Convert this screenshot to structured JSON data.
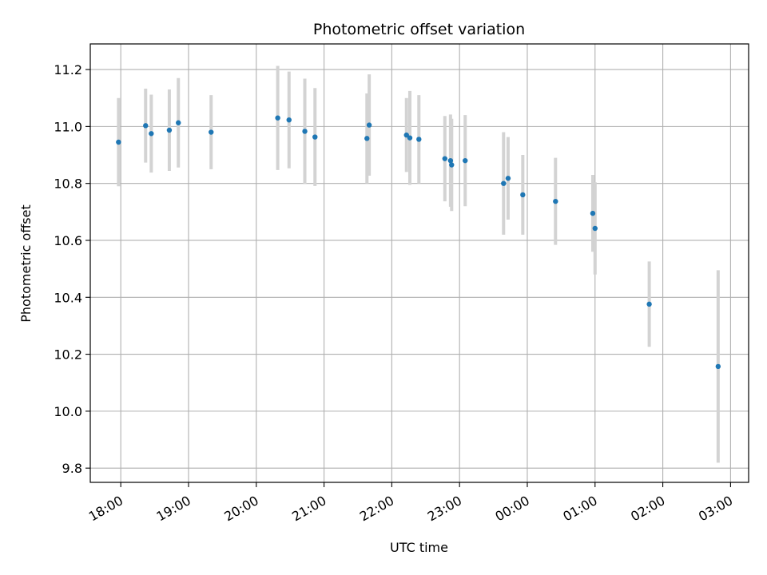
{
  "chart_data": {
    "type": "scatter",
    "title": "Photometric offset variation",
    "xlabel": "UTC time",
    "ylabel": "Photometric offset",
    "x_tick_labels": [
      "18:00",
      "19:00",
      "20:00",
      "21:00",
      "22:00",
      "23:00",
      "00:00",
      "01:00",
      "02:00",
      "03:00"
    ],
    "y_ticks": [
      9.8,
      10.0,
      10.2,
      10.4,
      10.6,
      10.8,
      11.0,
      11.2
    ],
    "y_tick_labels": [
      "9.8",
      "10.0",
      "10.2",
      "10.4",
      "10.6",
      "10.8",
      "11.0",
      "11.2"
    ],
    "ylim": [
      9.75,
      11.29
    ],
    "xlim": [
      "17:33",
      "03:16"
    ],
    "grid": true,
    "colors": {
      "marker": "#1f77b4",
      "errorbar": "#d3d3d3",
      "grid": "#b0b0b0"
    },
    "points": [
      {
        "x": "17:58",
        "y": 10.945,
        "yerr": 0.155
      },
      {
        "x": "18:22",
        "y": 11.003,
        "yerr": 0.13
      },
      {
        "x": "18:27",
        "y": 10.975,
        "yerr": 0.137
      },
      {
        "x": "18:43",
        "y": 10.987,
        "yerr": 0.143
      },
      {
        "x": "18:51",
        "y": 11.013,
        "yerr": 0.157
      },
      {
        "x": "19:20",
        "y": 10.98,
        "yerr": 0.13
      },
      {
        "x": "20:19",
        "y": 11.03,
        "yerr": 0.183
      },
      {
        "x": "20:29",
        "y": 11.023,
        "yerr": 0.17
      },
      {
        "x": "20:43",
        "y": 10.983,
        "yerr": 0.185
      },
      {
        "x": "20:52",
        "y": 10.963,
        "yerr": 0.172
      },
      {
        "x": "21:38",
        "y": 10.958,
        "yerr": 0.158
      },
      {
        "x": "21:40",
        "y": 11.005,
        "yerr": 0.178
      },
      {
        "x": "22:13",
        "y": 10.97,
        "yerr": 0.13
      },
      {
        "x": "22:16",
        "y": 10.96,
        "yerr": 0.165
      },
      {
        "x": "22:24",
        "y": 10.955,
        "yerr": 0.155
      },
      {
        "x": "22:47",
        "y": 10.887,
        "yerr": 0.15
      },
      {
        "x": "22:52",
        "y": 10.88,
        "yerr": 0.162
      },
      {
        "x": "22:53",
        "y": 10.865,
        "yerr": 0.162
      },
      {
        "x": "23:05",
        "y": 10.88,
        "yerr": 0.16
      },
      {
        "x": "23:39",
        "y": 10.8,
        "yerr": 0.18
      },
      {
        "x": "23:43",
        "y": 10.818,
        "yerr": 0.145
      },
      {
        "x": "23:56",
        "y": 10.76,
        "yerr": 0.14
      },
      {
        "x": "00:25",
        "y": 10.737,
        "yerr": 0.153
      },
      {
        "x": "00:58",
        "y": 10.695,
        "yerr": 0.135
      },
      {
        "x": "01:00",
        "y": 10.642,
        "yerr": 0.162
      },
      {
        "x": "01:48",
        "y": 10.376,
        "yerr": 0.15
      },
      {
        "x": "02:49",
        "y": 10.157,
        "yerr": 0.338
      }
    ]
  }
}
